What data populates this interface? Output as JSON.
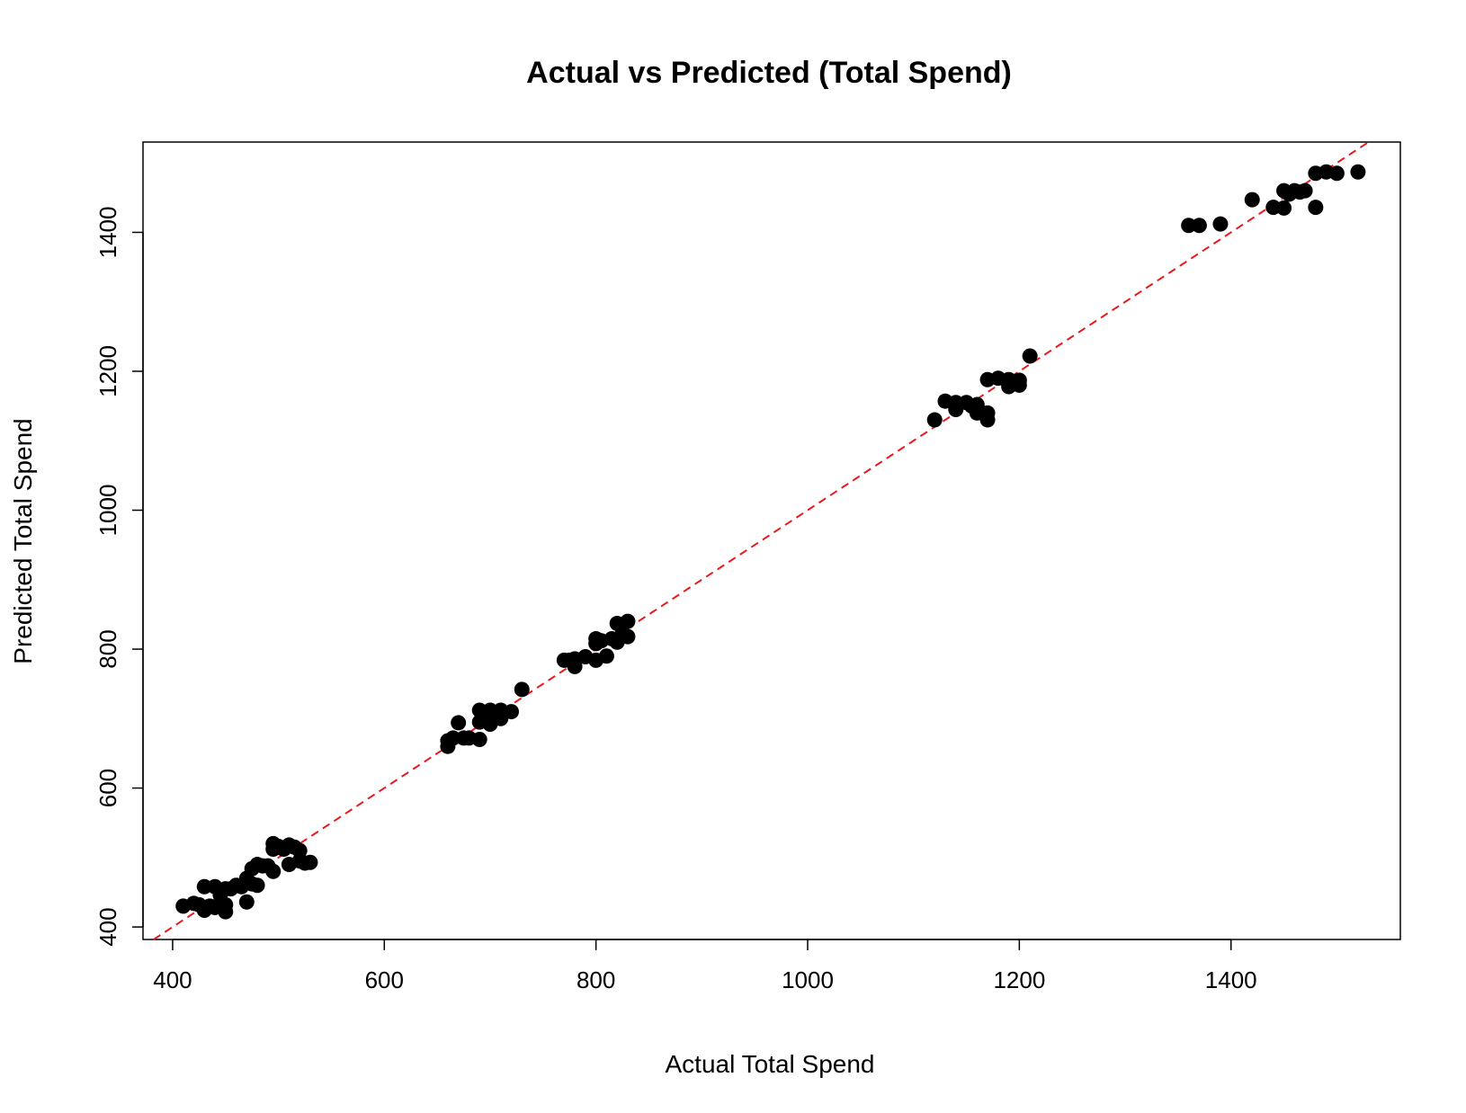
{
  "chart_data": {
    "type": "scatter",
    "title": "Actual vs Predicted (Total Spend)",
    "xlabel": "Actual Total Spend",
    "ylabel": "Predicted Total Spend",
    "xlim": [
      372,
      1560
    ],
    "ylim": [
      382,
      1530
    ],
    "xticks": [
      400,
      600,
      800,
      1000,
      1200,
      1400
    ],
    "yticks": [
      400,
      600,
      800,
      1000,
      1200,
      1400
    ],
    "reference_line": {
      "slope": 1,
      "intercept": 0,
      "color": "#e8191c",
      "style": "dashed"
    },
    "point_color": "#000000",
    "grid": false,
    "legend": false,
    "points": [
      {
        "x": 410,
        "y": 430
      },
      {
        "x": 420,
        "y": 434
      },
      {
        "x": 425,
        "y": 432
      },
      {
        "x": 430,
        "y": 458
      },
      {
        "x": 430,
        "y": 424
      },
      {
        "x": 435,
        "y": 430
      },
      {
        "x": 440,
        "y": 458
      },
      {
        "x": 440,
        "y": 428
      },
      {
        "x": 445,
        "y": 446
      },
      {
        "x": 450,
        "y": 455
      },
      {
        "x": 450,
        "y": 432
      },
      {
        "x": 450,
        "y": 422
      },
      {
        "x": 455,
        "y": 455
      },
      {
        "x": 460,
        "y": 460
      },
      {
        "x": 465,
        "y": 458
      },
      {
        "x": 470,
        "y": 470
      },
      {
        "x": 470,
        "y": 436
      },
      {
        "x": 475,
        "y": 484
      },
      {
        "x": 475,
        "y": 462
      },
      {
        "x": 480,
        "y": 490
      },
      {
        "x": 480,
        "y": 460
      },
      {
        "x": 485,
        "y": 488
      },
      {
        "x": 490,
        "y": 488
      },
      {
        "x": 495,
        "y": 520
      },
      {
        "x": 495,
        "y": 512
      },
      {
        "x": 495,
        "y": 480
      },
      {
        "x": 500,
        "y": 516
      },
      {
        "x": 505,
        "y": 512
      },
      {
        "x": 510,
        "y": 518
      },
      {
        "x": 510,
        "y": 490
      },
      {
        "x": 515,
        "y": 515
      },
      {
        "x": 520,
        "y": 510
      },
      {
        "x": 520,
        "y": 495
      },
      {
        "x": 525,
        "y": 492
      },
      {
        "x": 530,
        "y": 493
      },
      {
        "x": 660,
        "y": 668
      },
      {
        "x": 660,
        "y": 660
      },
      {
        "x": 665,
        "y": 672
      },
      {
        "x": 670,
        "y": 694
      },
      {
        "x": 675,
        "y": 672
      },
      {
        "x": 680,
        "y": 672
      },
      {
        "x": 690,
        "y": 712
      },
      {
        "x": 690,
        "y": 695
      },
      {
        "x": 690,
        "y": 670
      },
      {
        "x": 695,
        "y": 700
      },
      {
        "x": 700,
        "y": 712
      },
      {
        "x": 700,
        "y": 692
      },
      {
        "x": 705,
        "y": 705
      },
      {
        "x": 710,
        "y": 700
      },
      {
        "x": 710,
        "y": 712
      },
      {
        "x": 720,
        "y": 710
      },
      {
        "x": 730,
        "y": 742
      },
      {
        "x": 770,
        "y": 784
      },
      {
        "x": 775,
        "y": 784
      },
      {
        "x": 780,
        "y": 775
      },
      {
        "x": 780,
        "y": 786
      },
      {
        "x": 790,
        "y": 789
      },
      {
        "x": 800,
        "y": 815
      },
      {
        "x": 800,
        "y": 808
      },
      {
        "x": 800,
        "y": 784
      },
      {
        "x": 805,
        "y": 812
      },
      {
        "x": 810,
        "y": 790
      },
      {
        "x": 815,
        "y": 815
      },
      {
        "x": 820,
        "y": 837
      },
      {
        "x": 820,
        "y": 810
      },
      {
        "x": 825,
        "y": 822
      },
      {
        "x": 830,
        "y": 840
      },
      {
        "x": 830,
        "y": 818
      },
      {
        "x": 1120,
        "y": 1130
      },
      {
        "x": 1130,
        "y": 1157
      },
      {
        "x": 1140,
        "y": 1155
      },
      {
        "x": 1140,
        "y": 1145
      },
      {
        "x": 1150,
        "y": 1155
      },
      {
        "x": 1155,
        "y": 1150
      },
      {
        "x": 1160,
        "y": 1152
      },
      {
        "x": 1160,
        "y": 1140
      },
      {
        "x": 1165,
        "y": 1140
      },
      {
        "x": 1170,
        "y": 1188
      },
      {
        "x": 1170,
        "y": 1140
      },
      {
        "x": 1170,
        "y": 1130
      },
      {
        "x": 1180,
        "y": 1190
      },
      {
        "x": 1190,
        "y": 1188
      },
      {
        "x": 1190,
        "y": 1178
      },
      {
        "x": 1195,
        "y": 1182
      },
      {
        "x": 1200,
        "y": 1187
      },
      {
        "x": 1200,
        "y": 1180
      },
      {
        "x": 1210,
        "y": 1222
      },
      {
        "x": 1360,
        "y": 1410
      },
      {
        "x": 1370,
        "y": 1410
      },
      {
        "x": 1390,
        "y": 1412
      },
      {
        "x": 1420,
        "y": 1447
      },
      {
        "x": 1440,
        "y": 1436
      },
      {
        "x": 1450,
        "y": 1435
      },
      {
        "x": 1450,
        "y": 1460
      },
      {
        "x": 1455,
        "y": 1455
      },
      {
        "x": 1460,
        "y": 1460
      },
      {
        "x": 1465,
        "y": 1458
      },
      {
        "x": 1470,
        "y": 1460
      },
      {
        "x": 1480,
        "y": 1485
      },
      {
        "x": 1480,
        "y": 1436
      },
      {
        "x": 1490,
        "y": 1487
      },
      {
        "x": 1500,
        "y": 1485
      },
      {
        "x": 1520,
        "y": 1487
      }
    ]
  }
}
